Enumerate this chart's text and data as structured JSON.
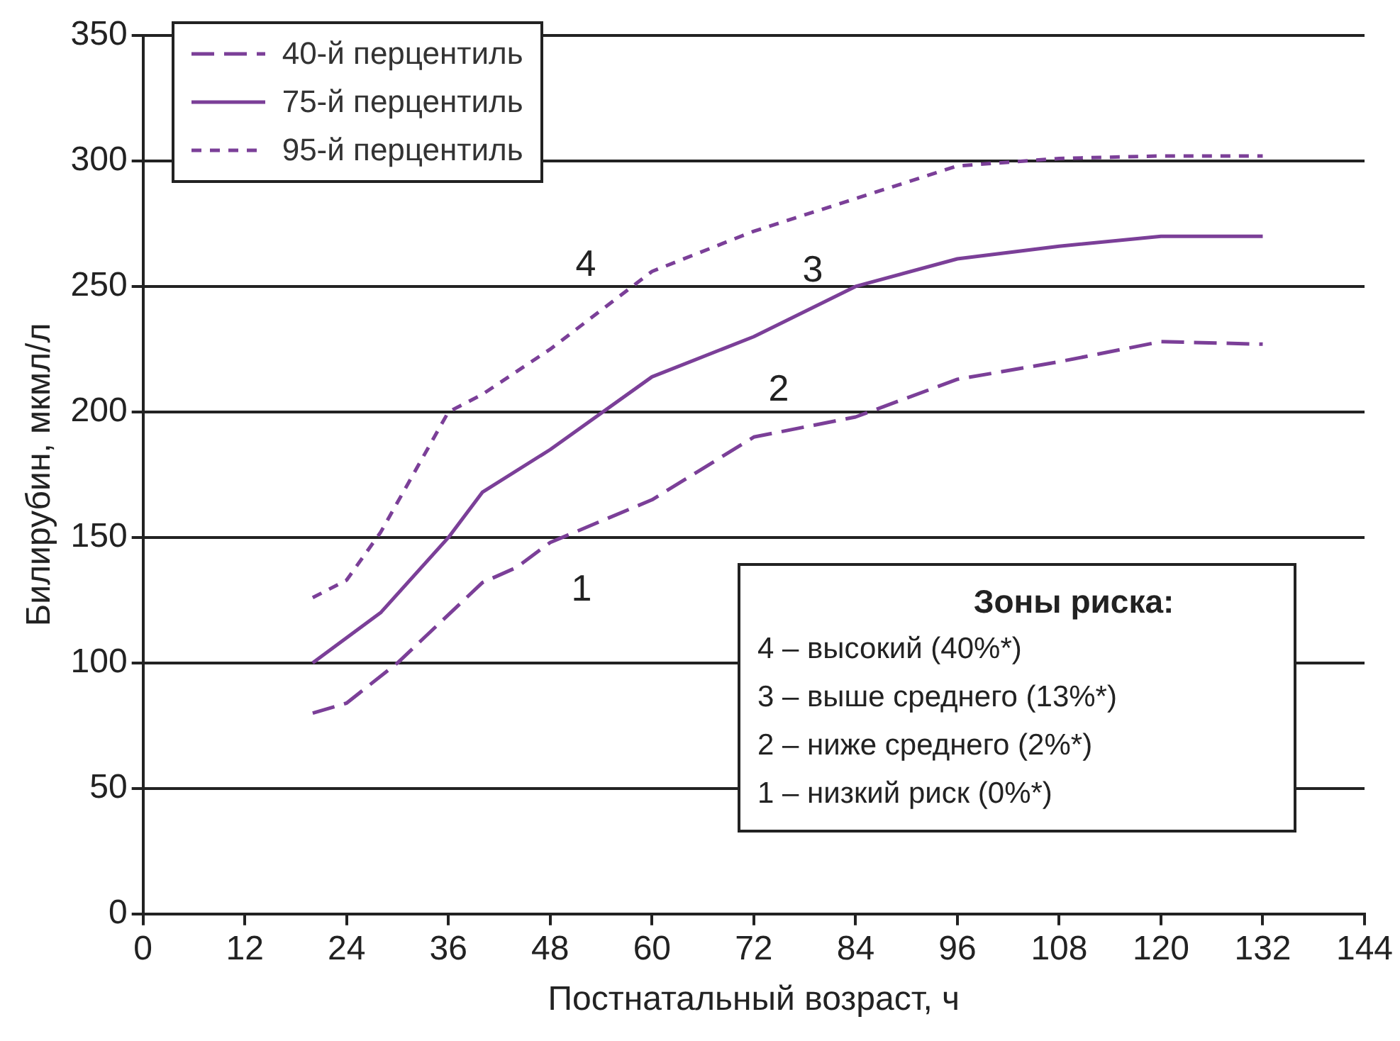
{
  "chart_data": {
    "type": "line",
    "xlabel": "Постнатальный возраст, ч",
    "ylabel": "Билирубин, мкмл/л",
    "xlim": [
      0,
      144
    ],
    "xticks": [
      0,
      12,
      24,
      36,
      48,
      60,
      72,
      84,
      96,
      108,
      120,
      132,
      144
    ],
    "ylim": [
      0,
      350
    ],
    "yticks": [
      0,
      50,
      100,
      150,
      200,
      250,
      300,
      350
    ],
    "grid": "y",
    "legend": "top left",
    "marker": "none",
    "series": [
      {
        "name": "40-й перцентиль",
        "color": "#7b3f98",
        "line_style": "dashed",
        "x": [
          20,
          24,
          30,
          40,
          44,
          48,
          60,
          72,
          84,
          96,
          108,
          120,
          132
        ],
        "values": [
          80,
          84,
          100,
          132,
          138,
          148,
          165,
          190,
          198,
          213,
          220,
          228,
          227
        ]
      },
      {
        "name": "75-й перцентиль",
        "color": "#7b3f98",
        "line_style": "solid",
        "x": [
          20,
          28,
          36,
          40,
          48,
          60,
          72,
          84,
          96,
          108,
          120,
          132
        ],
        "values": [
          100,
          120,
          150,
          168,
          185,
          214,
          230,
          250,
          261,
          266,
          270,
          270
        ]
      },
      {
        "name": "95-й перцентиль",
        "color": "#7b3f98",
        "line_style": "dotted",
        "x": [
          20,
          24,
          28,
          36,
          40,
          48,
          60,
          72,
          84,
          96,
          108,
          120,
          132
        ],
        "values": [
          126,
          133,
          152,
          200,
          207,
          225,
          256,
          272,
          285,
          298,
          301,
          302,
          302
        ]
      }
    ],
    "annotations": [
      "4",
      "3",
      "2",
      "1",
      "Зоны риска:",
      "4 – высокий (40%*)",
      "3 – выше среднего (13%*)",
      "2 – ниже среднего (2%*)",
      "1 – низкий риск (0%*)"
    ]
  }
}
